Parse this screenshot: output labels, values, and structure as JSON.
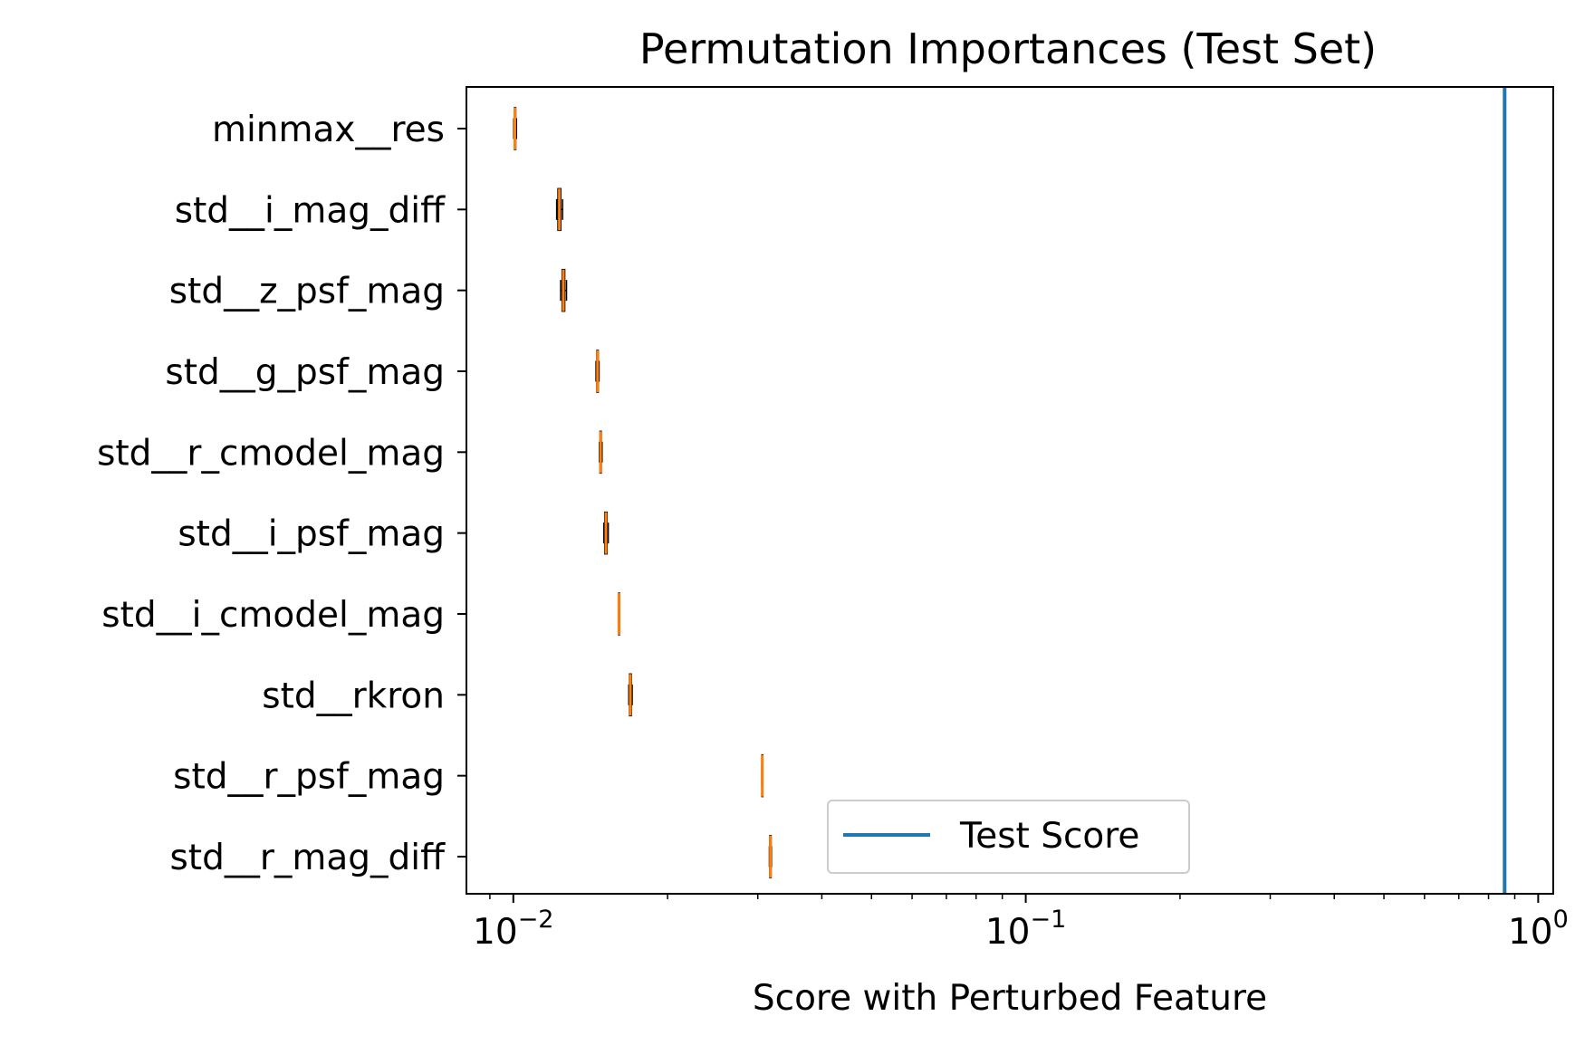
{
  "chart_data": {
    "type": "boxplot",
    "title": "Permutation Importances (Test Set)",
    "xlabel": "Score with Perturbed Feature",
    "ylabel": "",
    "xscale": "log",
    "xlim": [
      0.0081,
      1.07
    ],
    "x_ticks": [
      {
        "value": 0.01,
        "base": "10",
        "exp": "−2"
      },
      {
        "value": 0.1,
        "base": "10",
        "exp": "−1"
      },
      {
        "value": 1,
        "base": "10",
        "exp": "0"
      }
    ],
    "grid": false,
    "categories": [
      "minmax__res",
      "std__i_mag_diff",
      "std__z_psf_mag",
      "std__g_psf_mag",
      "std__r_cmodel_mag",
      "std__i_psf_mag",
      "std__i_cmodel_mag",
      "std__rkron",
      "std__r_psf_mag",
      "std__r_mag_diff"
    ],
    "boxes": [
      {
        "label": "minmax__res",
        "whislo": 0.01002,
        "q1": 0.01005,
        "med": 0.01007,
        "q3": 0.01011,
        "whishi": 0.01014
      },
      {
        "label": "std__i_mag_diff",
        "whislo": 0.01215,
        "q1": 0.01222,
        "med": 0.0123,
        "q3": 0.01238,
        "whishi": 0.01248
      },
      {
        "label": "std__z_psf_mag",
        "whislo": 0.01237,
        "q1": 0.01245,
        "med": 0.01252,
        "q3": 0.0126,
        "whishi": 0.0127
      },
      {
        "label": "std__g_psf_mag",
        "whislo": 0.0145,
        "q1": 0.01455,
        "med": 0.0146,
        "q3": 0.01465,
        "whishi": 0.0147
      },
      {
        "label": "std__r_cmodel_mag",
        "whislo": 0.01472,
        "q1": 0.01476,
        "med": 0.0148,
        "q3": 0.01485,
        "whishi": 0.0149
      },
      {
        "label": "std__i_psf_mag",
        "whislo": 0.01502,
        "q1": 0.01508,
        "med": 0.01516,
        "q3": 0.01524,
        "whishi": 0.01532
      },
      {
        "label": "std__i_cmodel_mag",
        "whislo": 0.01604,
        "q1": 0.01605,
        "med": 0.01607,
        "q3": 0.01609,
        "whishi": 0.0161
      },
      {
        "label": "std__rkron",
        "whislo": 0.0168,
        "q1": 0.01685,
        "med": 0.01692,
        "q3": 0.017,
        "whishi": 0.01706
      },
      {
        "label": "std__r_psf_mag",
        "whislo": 0.03054,
        "q1": 0.03056,
        "med": 0.0306,
        "q3": 0.03064,
        "whishi": 0.03066
      },
      {
        "label": "std__r_mag_diff",
        "whislo": 0.0316,
        "q1": 0.03165,
        "med": 0.03175,
        "q3": 0.03185,
        "whishi": 0.0319
      }
    ],
    "reference_line": {
      "name": "Test Score",
      "value": 0.86,
      "orientation": "vertical",
      "color": "#1f77b4"
    },
    "legend": {
      "entries": [
        "Test Score"
      ],
      "placement": "lower-center"
    },
    "colors": {
      "box_median": "#ff7f0e",
      "box_edge": "#000000",
      "axes": "#000000"
    }
  }
}
